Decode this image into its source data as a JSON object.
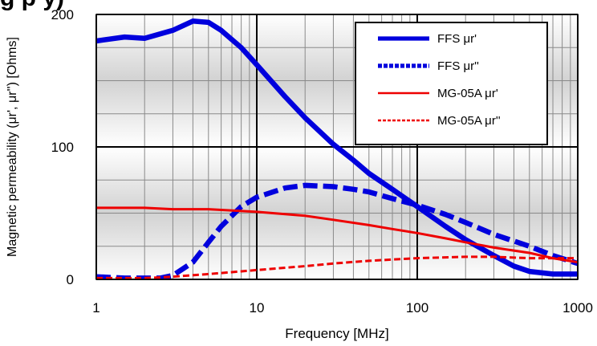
{
  "page_title_fragment": "g   p   y)",
  "chart_data": {
    "type": "line",
    "xscale": "log",
    "xlim": [
      1,
      1000
    ],
    "ylim": [
      0,
      200
    ],
    "xlabel": "Frequency [MHz]",
    "ylabel": "Magnetic permeability (μr', μr'') [Ohms]",
    "x_ticks": [
      1,
      10,
      100,
      1000
    ],
    "x_tick_labels": [
      "1",
      "10",
      "100",
      "1000"
    ],
    "y_ticks": [
      0,
      100,
      200
    ],
    "y_tick_labels": [
      "0",
      "100",
      "200"
    ],
    "grid": true,
    "legend_position": "top-right",
    "series": [
      {
        "name": "FFS μr'",
        "color": "#0000dd",
        "style": "solid",
        "width": "thick",
        "points": [
          [
            1,
            180
          ],
          [
            1.5,
            183
          ],
          [
            2,
            182
          ],
          [
            3,
            188
          ],
          [
            4,
            195
          ],
          [
            5,
            194
          ],
          [
            6,
            188
          ],
          [
            8,
            175
          ],
          [
            10,
            162
          ],
          [
            15,
            138
          ],
          [
            20,
            122
          ],
          [
            30,
            102
          ],
          [
            40,
            90
          ],
          [
            50,
            80
          ],
          [
            70,
            68
          ],
          [
            100,
            55
          ],
          [
            150,
            40
          ],
          [
            200,
            30
          ],
          [
            300,
            18
          ],
          [
            400,
            10
          ],
          [
            500,
            6
          ],
          [
            700,
            4
          ],
          [
            1000,
            4
          ]
        ]
      },
      {
        "name": "FFS μr''",
        "color": "#0000dd",
        "style": "dashed",
        "width": "thick",
        "points": [
          [
            1,
            2
          ],
          [
            1.5,
            1
          ],
          [
            2,
            1
          ],
          [
            2.5,
            1
          ],
          [
            3,
            3
          ],
          [
            4,
            13
          ],
          [
            5,
            28
          ],
          [
            6,
            40
          ],
          [
            8,
            55
          ],
          [
            10,
            62
          ],
          [
            15,
            69
          ],
          [
            20,
            71
          ],
          [
            30,
            70
          ],
          [
            40,
            68
          ],
          [
            50,
            66
          ],
          [
            70,
            61
          ],
          [
            100,
            56
          ],
          [
            150,
            49
          ],
          [
            200,
            43
          ],
          [
            300,
            34
          ],
          [
            500,
            25
          ],
          [
            700,
            18
          ],
          [
            1000,
            12
          ]
        ]
      },
      {
        "name": "MG-05A μr'",
        "color": "#ee0000",
        "style": "solid",
        "width": "normal",
        "points": [
          [
            1,
            54
          ],
          [
            2,
            54
          ],
          [
            3,
            53
          ],
          [
            5,
            53
          ],
          [
            10,
            51
          ],
          [
            20,
            48
          ],
          [
            30,
            45
          ],
          [
            50,
            41
          ],
          [
            70,
            38
          ],
          [
            100,
            35
          ],
          [
            150,
            31
          ],
          [
            200,
            28
          ],
          [
            300,
            24
          ],
          [
            500,
            20
          ],
          [
            700,
            16
          ],
          [
            1000,
            13
          ]
        ]
      },
      {
        "name": "MG-05A μr''",
        "color": "#ee0000",
        "style": "dashed",
        "width": "normal",
        "points": [
          [
            1,
            1
          ],
          [
            2,
            1
          ],
          [
            3,
            2
          ],
          [
            5,
            4
          ],
          [
            10,
            7
          ],
          [
            20,
            10
          ],
          [
            30,
            12
          ],
          [
            50,
            14
          ],
          [
            100,
            16
          ],
          [
            200,
            17
          ],
          [
            300,
            17
          ],
          [
            500,
            16
          ],
          [
            700,
            16
          ],
          [
            1000,
            16
          ]
        ]
      }
    ]
  }
}
